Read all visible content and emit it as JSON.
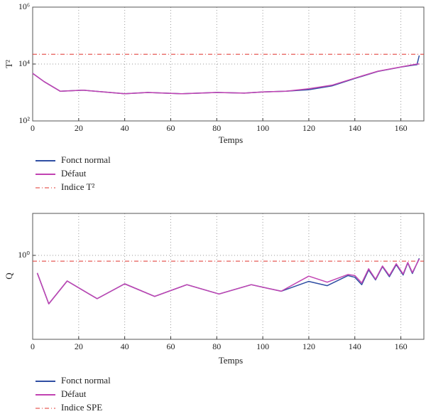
{
  "chart_data": [
    {
      "type": "line",
      "ylabel": "T²",
      "xlabel": "Temps",
      "yscale": "log",
      "grid": true,
      "xlim": [
        0,
        170
      ],
      "xticks": [
        0,
        20,
        40,
        60,
        80,
        100,
        120,
        140,
        160
      ],
      "ylim": [
        100,
        1000000
      ],
      "yticks": [
        {
          "value": 100,
          "label": "10²"
        },
        {
          "value": 10000,
          "label": "10⁴"
        },
        {
          "value": 1000000,
          "label": "10⁶"
        }
      ],
      "x": [
        0,
        5,
        12,
        22,
        40,
        50,
        65,
        80,
        92,
        100,
        110,
        120,
        130,
        140,
        150,
        160,
        165,
        167,
        168
      ],
      "series": [
        {
          "name": "Fonct normal",
          "color": "#2f4ea3",
          "values": [
            4700,
            2400,
            1100,
            1200,
            900,
            1000,
            900,
            1000,
            950,
            1050,
            1100,
            1250,
            1700,
            3100,
            5500,
            7800,
            9000,
            9500,
            20000
          ]
        },
        {
          "name": "Défaut",
          "color": "#c143b2",
          "values": [
            4700,
            2400,
            1100,
            1200,
            900,
            1000,
            900,
            1000,
            950,
            1050,
            1100,
            1350,
            1800,
            3200,
            5600,
            7900,
            9400,
            10000,
            10000
          ]
        }
      ],
      "threshold": {
        "name": "Indice T²",
        "value": 22000,
        "color": "#e0342e"
      }
    },
    {
      "type": "line",
      "ylabel": "Q",
      "xlabel": "Temps",
      "yscale": "log",
      "grid": true,
      "xlim": [
        0,
        170
      ],
      "xticks": [
        0,
        20,
        40,
        60,
        80,
        100,
        120,
        140,
        160
      ],
      "ylim": [
        0.01,
        10
      ],
      "yticks": [
        {
          "value": 1,
          "label": "10⁰"
        }
      ],
      "x": [
        2,
        7,
        15,
        28,
        40,
        53,
        67,
        81,
        95,
        108,
        120,
        128,
        137,
        140,
        143,
        146,
        149,
        152,
        155,
        158,
        161,
        163,
        165,
        168
      ],
      "series": [
        {
          "name": "Fonct normal",
          "color": "#2f4ea3",
          "values": [
            0.38,
            0.07,
            0.245,
            0.093,
            0.21,
            0.105,
            0.2,
            0.12,
            0.2,
            0.14,
            0.24,
            0.19,
            0.33,
            0.3,
            0.2,
            0.45,
            0.26,
            0.54,
            0.31,
            0.6,
            0.34,
            0.66,
            0.37,
            0.85
          ]
        },
        {
          "name": "Défaut",
          "color": "#c143b2",
          "values": [
            0.38,
            0.07,
            0.245,
            0.093,
            0.21,
            0.105,
            0.2,
            0.12,
            0.2,
            0.14,
            0.32,
            0.23,
            0.35,
            0.33,
            0.22,
            0.48,
            0.27,
            0.56,
            0.33,
            0.63,
            0.36,
            0.68,
            0.39,
            0.82
          ]
        }
      ],
      "threshold": {
        "name": "Indice SPE",
        "value": 0.73,
        "color": "#e0342e"
      }
    }
  ]
}
